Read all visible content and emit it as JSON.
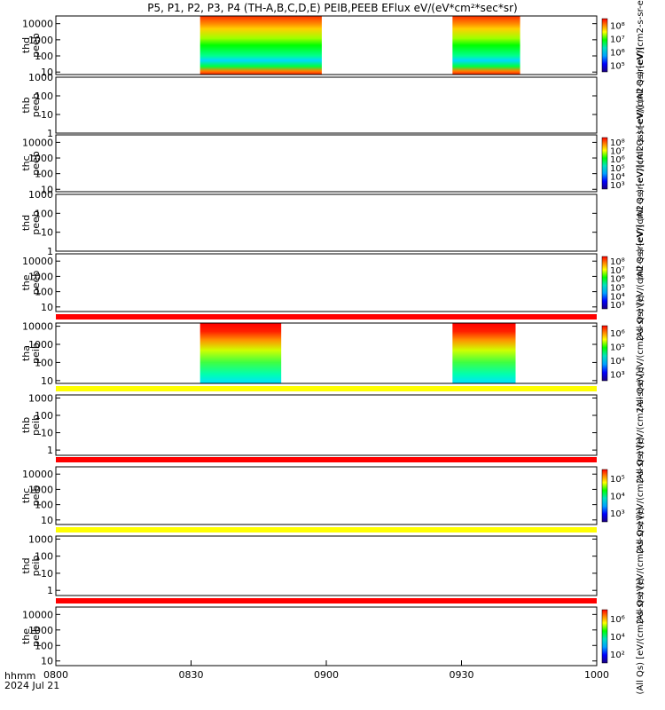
{
  "title": "P5, P1, P2, P3, P4 (TH-A,B,C,D,E) PEIB,PEEB EFlux eV/(eV*cm²*sec*sr)",
  "x_axis": {
    "ticks": [
      "0800",
      "0830",
      "0900",
      "0930",
      "1000"
    ],
    "label_line1": "hhmm",
    "label_line2": "2024 Jul 21",
    "range": [
      "08:00",
      "10:00"
    ]
  },
  "colorbar_label_eflux": "eV/(cm2-s-sr-eV)",
  "colorbar_label_allqs": "(All Qs)",
  "chart_data": [
    {
      "type": "heatmap",
      "ylabel": [
        "thd",
        "peeb"
      ],
      "y_scale": "log",
      "y_ticks": [
        "10",
        "100",
        "1000",
        "10000"
      ],
      "ylim": [
        7,
        30000
      ],
      "colorbar_ticks": [
        "10⁵",
        "10⁶",
        "10⁷",
        "10⁸"
      ],
      "intervals": [
        [
          "08:32",
          "08:59"
        ],
        [
          "09:28",
          "09:43"
        ]
      ]
    },
    {
      "type": "heatmap",
      "ylabel": [
        "thb",
        "peeb"
      ],
      "y_scale": "log",
      "y_ticks": [
        "1",
        "10",
        "100",
        "1000"
      ],
      "ylim": [
        1,
        1000
      ],
      "colorbar_ticks": [],
      "intervals": []
    },
    {
      "type": "heatmap",
      "ylabel": [
        "thc",
        "peeb"
      ],
      "y_scale": "log",
      "y_ticks": [
        "10",
        "100",
        "1000",
        "10000"
      ],
      "ylim": [
        7,
        30000
      ],
      "colorbar_ticks": [
        "10³",
        "10⁴",
        "10⁵",
        "10⁶",
        "10⁷",
        "10⁸"
      ],
      "intervals": []
    },
    {
      "type": "heatmap",
      "ylabel": [
        "thd",
        "peeb"
      ],
      "y_scale": "log",
      "y_ticks": [
        "1",
        "10",
        "100",
        "1000"
      ],
      "ylim": [
        1,
        1000
      ],
      "colorbar_ticks": [],
      "intervals": []
    },
    {
      "type": "heatmap",
      "ylabel": [
        "the",
        "peeb"
      ],
      "y_scale": "log",
      "y_ticks": [
        "10",
        "100",
        "1000",
        "10000"
      ],
      "ylim": [
        5,
        30000
      ],
      "colorbar_ticks": [
        "10³",
        "10⁴",
        "10⁵",
        "10⁶",
        "10⁷",
        "10⁸"
      ],
      "intervals": []
    },
    {
      "type": "heatmap",
      "ylabel": [
        "tha",
        "peib"
      ],
      "y_scale": "log",
      "y_ticks": [
        "10",
        "100",
        "1000",
        "10000"
      ],
      "ylim": [
        7,
        15000
      ],
      "colorbar_ticks": [
        "10³",
        "10⁴",
        "10⁵",
        "10⁶"
      ],
      "intervals": [
        [
          "08:32",
          "08:50"
        ],
        [
          "09:28",
          "09:42"
        ]
      ]
    },
    {
      "type": "heatmap",
      "ylabel": [
        "thb",
        "peib"
      ],
      "y_scale": "log",
      "y_ticks": [
        "1",
        "10",
        "100",
        "1000"
      ],
      "ylim": [
        0.5,
        1500
      ],
      "colorbar_ticks": [],
      "intervals": []
    },
    {
      "type": "heatmap",
      "ylabel": [
        "thc",
        "peib"
      ],
      "y_scale": "log",
      "y_ticks": [
        "10",
        "100",
        "1000",
        "10000"
      ],
      "ylim": [
        5,
        30000
      ],
      "colorbar_ticks": [
        "10³",
        "10⁴",
        "10⁵"
      ],
      "intervals": []
    },
    {
      "type": "heatmap",
      "ylabel": [
        "thd",
        "peib"
      ],
      "y_scale": "log",
      "y_ticks": [
        "1",
        "10",
        "100",
        "1000"
      ],
      "ylim": [
        0.5,
        1500
      ],
      "colorbar_ticks": [],
      "intervals": []
    },
    {
      "type": "heatmap",
      "ylabel": [
        "the",
        "peib"
      ],
      "y_scale": "log",
      "y_ticks": [
        "10",
        "100",
        "1000",
        "10000"
      ],
      "ylim": [
        5,
        30000
      ],
      "colorbar_ticks": [
        "10²",
        "10⁴",
        "10⁶"
      ],
      "intervals": []
    }
  ],
  "status_bars": [
    "#ff0000",
    "#ffff00",
    "#ff0000",
    "#ffff00",
    "#ff0000"
  ]
}
